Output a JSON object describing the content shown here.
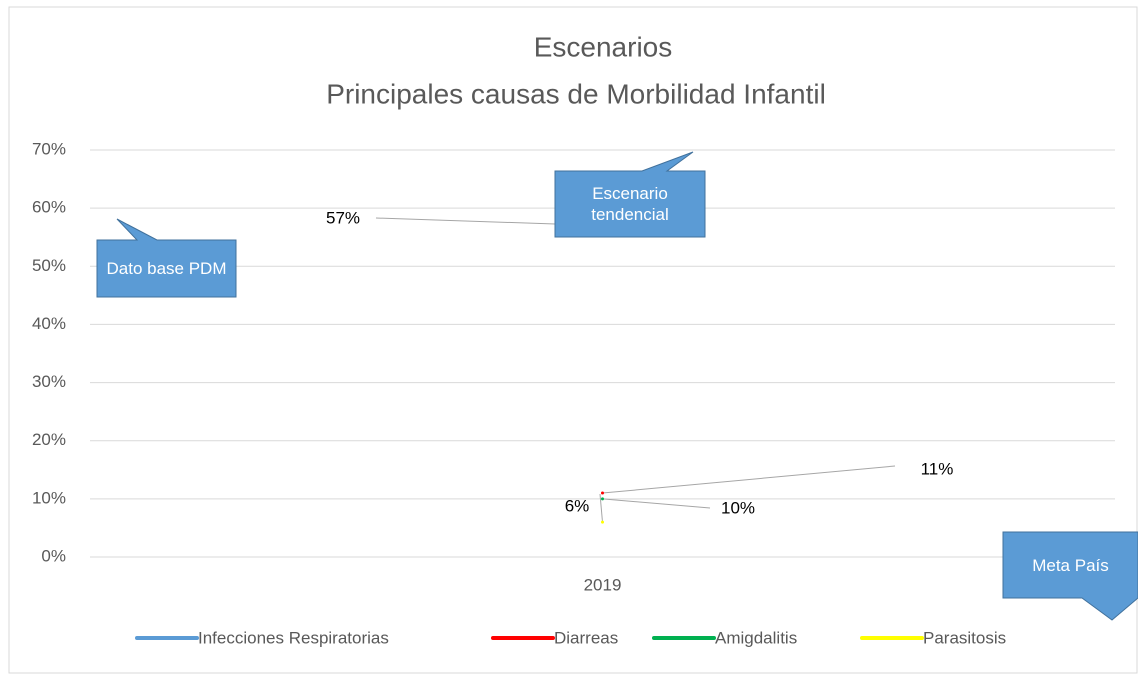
{
  "chart_data": {
    "type": "line",
    "title": "Escenarios",
    "subtitle": "Principales causas de Morbilidad Infantil",
    "categories": [
      "2019"
    ],
    "series": [
      {
        "name": "Infecciones Respiratorias",
        "color": "#5b9bd5",
        "values": [
          57
        ],
        "value_labels": [
          "57%"
        ]
      },
      {
        "name": "Diarreas",
        "color": "#ff0000",
        "values": [
          11
        ],
        "value_labels": [
          "11%"
        ]
      },
      {
        "name": "Amigdalitis",
        "color": "#00b050",
        "values": [
          10
        ],
        "value_labels": [
          "10%"
        ]
      },
      {
        "name": "Parasitosis",
        "color": "#ffff00",
        "values": [
          6
        ],
        "value_labels": [
          "6%"
        ]
      }
    ],
    "ylim": [
      0,
      70
    ],
    "yticks": [
      {
        "value": 0,
        "label": "0%"
      },
      {
        "value": 10,
        "label": "10%"
      },
      {
        "value": 20,
        "label": "20%"
      },
      {
        "value": 30,
        "label": "30%"
      },
      {
        "value": 40,
        "label": "40%"
      },
      {
        "value": 50,
        "label": "50%"
      },
      {
        "value": 60,
        "label": "60%"
      },
      {
        "value": 70,
        "label": "70%"
      }
    ],
    "grid": true,
    "legend": "bottom",
    "annotations": [
      "Dato base PDM",
      "Escenario tendencial",
      "Meta País"
    ]
  }
}
